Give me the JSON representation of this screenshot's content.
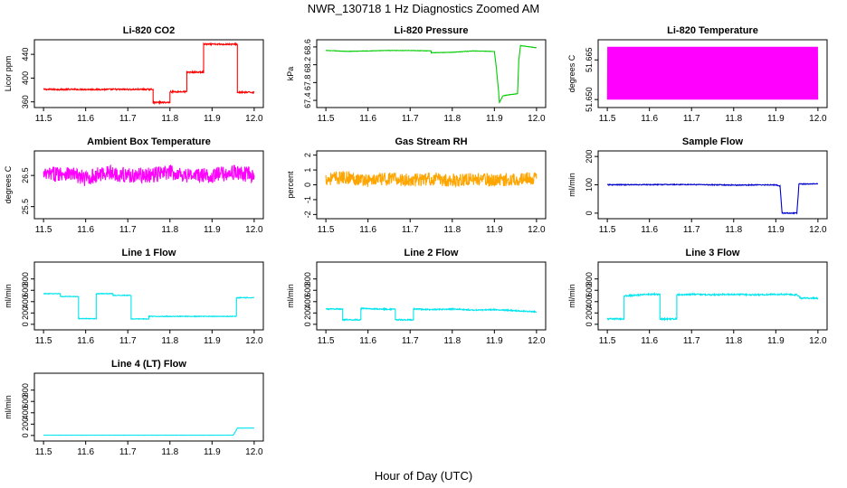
{
  "figure": {
    "title": "NWR_130718  1 Hz Diagnostics Zoomed AM",
    "xlabel": "Hour of Day (UTC)"
  },
  "chart_data": [
    {
      "type": "line",
      "title": "Li-820 CO2",
      "ylabel": "Licor ppm",
      "color": "#ff0000",
      "xlim": [
        11.5,
        12.0
      ],
      "ylim": [
        355,
        460
      ],
      "xticks": [
        "11.5",
        "11.6",
        "11.7",
        "11.8",
        "11.9",
        "12.0"
      ],
      "yticks": [
        "360",
        "400",
        "440"
      ],
      "series": [
        {
          "x": [
            11.5,
            11.76,
            11.76,
            11.8,
            11.8,
            11.84,
            11.84,
            11.88,
            11.88,
            11.96,
            11.96,
            12.0
          ],
          "values": [
            381,
            381,
            359,
            359,
            377,
            377,
            410,
            410,
            457,
            457,
            376,
            376
          ]
        }
      ]
    },
    {
      "type": "line",
      "title": "Li-820 Pressure",
      "ylabel": "kPa",
      "color": "#00cc00",
      "xlim": [
        11.5,
        12.0
      ],
      "ylim": [
        67.3,
        68.7
      ],
      "xticks": [
        "11.5",
        "11.6",
        "11.7",
        "11.8",
        "11.9",
        "12.0"
      ],
      "yticks": [
        "67.4",
        "67.8",
        "68.2",
        "68.6"
      ],
      "series": [
        {
          "x": [
            11.5,
            11.55,
            11.6,
            11.65,
            11.7,
            11.75,
            11.75,
            11.8,
            11.85,
            11.9,
            11.905,
            11.91,
            11.912,
            11.92,
            11.93,
            11.955,
            11.958,
            11.962,
            11.97,
            12.0
          ],
          "values": [
            68.52,
            68.5,
            68.51,
            68.52,
            68.52,
            68.51,
            68.47,
            68.48,
            68.51,
            68.5,
            68.1,
            67.6,
            67.35,
            67.5,
            67.52,
            67.55,
            68.3,
            68.63,
            68.62,
            68.58
          ]
        }
      ]
    },
    {
      "type": "line",
      "title": "Li-820 Temperature",
      "ylabel": "degrees C",
      "color": "#ff00ff",
      "xlim": [
        11.5,
        12.0
      ],
      "ylim": [
        51.648,
        51.6716
      ],
      "xticks": [
        "11.5",
        "11.6",
        "11.7",
        "11.8",
        "11.9",
        "12.0"
      ],
      "yticks": [
        "51.650",
        "51.665"
      ],
      "series": [
        {
          "x": [
            11.5,
            11.505,
            11.51,
            11.52,
            11.53,
            11.6,
            11.61,
            11.62,
            11.7,
            11.705,
            11.71,
            11.72,
            11.8,
            11.81,
            11.93,
            11.935,
            11.94,
            12.0
          ],
          "values": [
            51.65,
            51.67,
            51.65,
            51.67,
            51.65,
            51.67,
            51.65,
            51.67,
            51.65,
            51.67,
            51.65,
            51.67,
            51.65,
            51.67,
            51.65,
            51.67,
            51.65,
            51.67
          ]
        }
      ]
    },
    {
      "type": "line",
      "title": "Ambient Box Temperature",
      "ylabel": "degrees C",
      "color": "#ff00ff",
      "xlim": [
        11.5,
        12.0
      ],
      "ylim": [
        25.2,
        27.2
      ],
      "xticks": [
        "11.5",
        "11.6",
        "11.7",
        "11.8",
        "11.9",
        "12.0"
      ],
      "yticks": [
        "25.5",
        "26.5"
      ],
      "series": [
        {
          "x": [
            11.5,
            11.55,
            11.6,
            11.65,
            11.7,
            11.75,
            11.8,
            11.85,
            11.9,
            11.95,
            12.0
          ],
          "values": [
            26.5,
            26.6,
            26.4,
            26.6,
            26.5,
            26.5,
            26.6,
            26.5,
            26.5,
            26.6,
            26.5
          ]
        }
      ]
    },
    {
      "type": "line",
      "title": "Gas Stream RH",
      "ylabel": "percent",
      "color": "#ffa500",
      "xlim": [
        11.5,
        12.0
      ],
      "ylim": [
        -2.1,
        2.1
      ],
      "xticks": [
        "11.5",
        "11.6",
        "11.7",
        "11.8",
        "11.9",
        "12.0"
      ],
      "yticks": [
        "-2",
        "-1",
        "0",
        "1",
        "2"
      ],
      "series": [
        {
          "x": [
            11.5,
            11.55,
            11.6,
            11.65,
            11.7,
            11.75,
            11.8,
            11.85,
            11.9,
            11.95,
            12.0
          ],
          "values": [
            0.4,
            0.5,
            0.3,
            0.4,
            0.3,
            0.4,
            0.3,
            0.4,
            0.3,
            0.4,
            0.4
          ]
        }
      ]
    },
    {
      "type": "line",
      "title": "Sample Flow",
      "ylabel": "ml/min",
      "color": "#0000cc",
      "xlim": [
        11.5,
        12.0
      ],
      "ylim": [
        -10,
        210
      ],
      "xticks": [
        "11.5",
        "11.6",
        "11.7",
        "11.8",
        "11.9",
        "12.0"
      ],
      "yticks": [
        "0",
        "100",
        "200"
      ],
      "series": [
        {
          "x": [
            11.5,
            11.7,
            11.8,
            11.9,
            11.91,
            11.915,
            11.95,
            11.955,
            12.0
          ],
          "values": [
            100,
            101,
            99,
            100,
            95,
            0,
            0,
            103,
            103
          ]
        }
      ]
    },
    {
      "type": "line",
      "title": "Line 1 Flow",
      "ylabel": "ml/min",
      "color": "#00e5ee",
      "xlim": [
        11.5,
        12.0
      ],
      "ylim": [
        -50,
        1050
      ],
      "xticks": [
        "11.5",
        "11.6",
        "11.7",
        "11.8",
        "11.9",
        "12.0"
      ],
      "yticks": [
        "0",
        "200",
        "400",
        "600",
        "800"
      ],
      "series": [
        {
          "x": [
            11.5,
            11.54,
            11.54,
            11.583,
            11.583,
            11.625,
            11.625,
            11.665,
            11.665,
            11.708,
            11.708,
            11.75,
            11.75,
            11.958,
            11.958,
            12.0
          ],
          "values": [
            540,
            540,
            490,
            490,
            100,
            100,
            540,
            540,
            510,
            510,
            95,
            95,
            140,
            140,
            470,
            470
          ]
        }
      ]
    },
    {
      "type": "line",
      "title": "Line 2 Flow",
      "ylabel": "ml/min",
      "color": "#00e5ee",
      "xlim": [
        11.5,
        12.0
      ],
      "ylim": [
        -50,
        1050
      ],
      "xticks": [
        "11.5",
        "11.6",
        "11.7",
        "11.8",
        "11.9",
        "12.0"
      ],
      "yticks": [
        "0",
        "200",
        "400",
        "600",
        "800"
      ],
      "series": [
        {
          "x": [
            11.5,
            11.54,
            11.54,
            11.583,
            11.583,
            11.625,
            11.665,
            11.665,
            11.708,
            11.708,
            11.75,
            11.8,
            11.85,
            11.9,
            11.95,
            12.0
          ],
          "values": [
            270,
            270,
            80,
            80,
            280,
            270,
            265,
            80,
            80,
            270,
            260,
            270,
            250,
            260,
            240,
            220
          ]
        }
      ]
    },
    {
      "type": "line",
      "title": "Line 3 Flow",
      "ylabel": "ml/min",
      "color": "#00e5ee",
      "xlim": [
        11.5,
        12.0
      ],
      "ylim": [
        -50,
        1050
      ],
      "xticks": [
        "11.5",
        "11.6",
        "11.7",
        "11.8",
        "11.9",
        "12.0"
      ],
      "yticks": [
        "0",
        "200",
        "400",
        "600",
        "800"
      ],
      "series": [
        {
          "x": [
            11.5,
            11.54,
            11.54,
            11.583,
            11.583,
            11.625,
            11.625,
            11.665,
            11.665,
            11.708,
            11.75,
            11.8,
            11.85,
            11.9,
            11.95,
            11.96,
            12.0
          ],
          "values": [
            95,
            95,
            500,
            520,
            530,
            530,
            95,
            95,
            520,
            530,
            520,
            530,
            520,
            530,
            520,
            460,
            460
          ]
        }
      ]
    },
    {
      "type": "line",
      "title": "Line 4 (LT) Flow",
      "ylabel": "ml/min",
      "color": "#00e5ee",
      "xlim": [
        11.5,
        12.0
      ],
      "ylim": [
        -50,
        1050
      ],
      "xticks": [
        "11.5",
        "11.6",
        "11.7",
        "11.8",
        "11.9",
        "12.0"
      ],
      "yticks": [
        "0",
        "200",
        "400",
        "600",
        "800"
      ],
      "series": [
        {
          "x": [
            11.5,
            11.95,
            11.955,
            11.96,
            12.0
          ],
          "values": [
            5,
            5,
            60,
            130,
            130
          ]
        }
      ]
    }
  ]
}
